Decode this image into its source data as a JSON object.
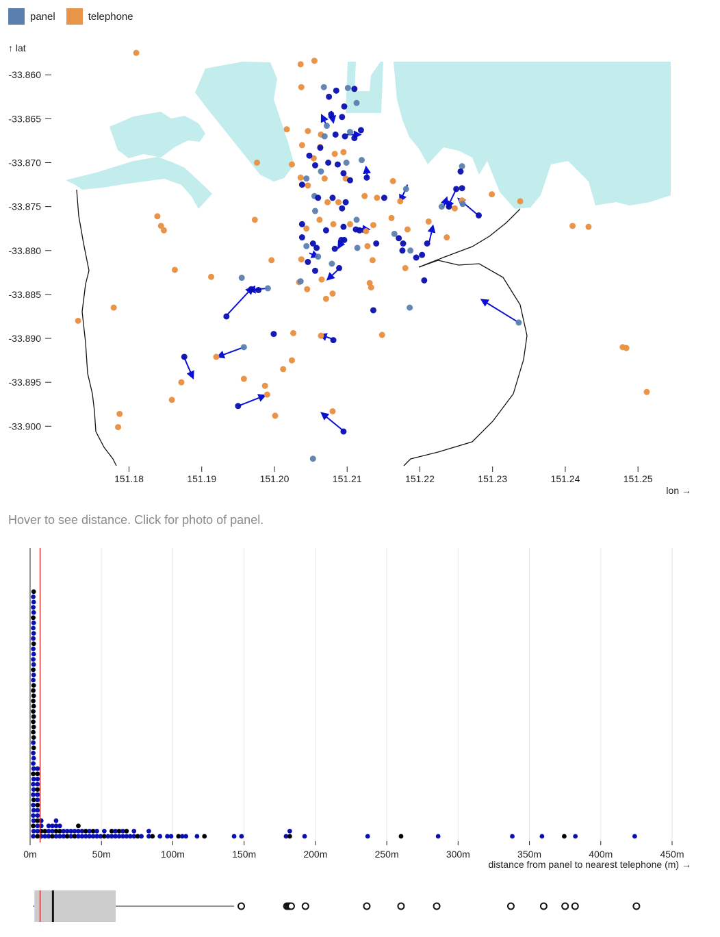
{
  "legend": {
    "items": [
      {
        "label": "panel",
        "color": "#5b7fae"
      },
      {
        "label": "telephone",
        "color": "#e8954a"
      }
    ]
  },
  "hint": "Hover to see distance. Click for photo of panel.",
  "colors": {
    "water": "#c3eced",
    "panel": "#5b7fae",
    "telephone": "#e8954a",
    "arrow": "#0b10d6",
    "dot_blue": "#0a0fb0",
    "dot_black": "#000000",
    "median": "#d0312d",
    "box_fill": "#cccccc",
    "grid": "#e6e6e6"
  },
  "chart_data": [
    {
      "type": "scatter",
      "id": "map",
      "xlabel": "lon →",
      "ylabel": "↑ lat",
      "xlim": [
        151.1728,
        151.2545
      ],
      "ylim": [
        -33.9045,
        -33.8585
      ],
      "xticks": [
        {
          "v": 151.18,
          "label": "151.18"
        },
        {
          "v": 151.19,
          "label": "151.19"
        },
        {
          "v": 151.2,
          "label": "151.20"
        },
        {
          "v": 151.21,
          "label": "151.21"
        },
        {
          "v": 151.22,
          "label": "151.22"
        },
        {
          "v": 151.23,
          "label": "151.23"
        },
        {
          "v": 151.24,
          "label": "151.24"
        },
        {
          "v": 151.25,
          "label": "151.25"
        }
      ],
      "yticks": [
        {
          "v": -33.86,
          "label": "-33.860"
        },
        {
          "v": -33.865,
          "label": "-33.865"
        },
        {
          "v": -33.87,
          "label": "-33.870"
        },
        {
          "v": -33.875,
          "label": "-33.875"
        },
        {
          "v": -33.88,
          "label": "-33.880"
        },
        {
          "v": -33.885,
          "label": "-33.885"
        },
        {
          "v": -33.89,
          "label": "-33.890"
        },
        {
          "v": -33.895,
          "label": "-33.895"
        },
        {
          "v": -33.9,
          "label": "-33.900"
        }
      ],
      "telephones": [
        [
          151.181,
          -33.8575
        ],
        [
          151.2036,
          -33.8588
        ],
        [
          151.2055,
          -33.8584
        ],
        [
          151.2037,
          -33.8614
        ],
        [
          151.2038,
          -33.868
        ],
        [
          151.2046,
          -33.8664
        ],
        [
          151.2064,
          -33.8668
        ],
        [
          151.2024,
          -33.8702
        ],
        [
          151.2036,
          -33.8717
        ],
        [
          151.2046,
          -33.8726
        ],
        [
          151.2083,
          -33.869
        ],
        [
          151.2095,
          -33.8688
        ],
        [
          151.2073,
          -33.8745
        ],
        [
          151.2088,
          -33.8745
        ],
        [
          151.2062,
          -33.8765
        ],
        [
          151.2044,
          -33.8775
        ],
        [
          151.2081,
          -33.877
        ],
        [
          151.2037,
          -33.881
        ],
        [
          151.2034,
          -33.8836
        ],
        [
          151.2045,
          -33.8844
        ],
        [
          151.2065,
          -33.8833
        ],
        [
          151.2071,
          -33.8855
        ],
        [
          151.208,
          -33.8849
        ],
        [
          151.1976,
          -33.87
        ],
        [
          151.1973,
          -33.8765
        ],
        [
          151.1996,
          -33.8811
        ],
        [
          151.2163,
          -33.8721
        ],
        [
          151.2173,
          -33.8744
        ],
        [
          151.2141,
          -33.874
        ],
        [
          151.2161,
          -33.8763
        ],
        [
          151.2126,
          -33.8778
        ],
        [
          151.2136,
          -33.8771
        ],
        [
          151.2183,
          -33.8776
        ],
        [
          151.2128,
          -33.8795
        ],
        [
          151.218,
          -33.882
        ],
        [
          151.2131,
          -33.8837
        ],
        [
          151.2133,
          -33.8842
        ],
        [
          151.2237,
          -33.8785
        ],
        [
          151.2248,
          -33.8752
        ],
        [
          151.2258,
          -33.8743
        ],
        [
          151.2299,
          -33.8736
        ],
        [
          151.2338,
          -33.8744
        ],
        [
          151.2212,
          -33.8767
        ],
        [
          151.241,
          -33.8772
        ],
        [
          151.2432,
          -33.8773
        ],
        [
          151.1839,
          -33.8761
        ],
        [
          151.1844,
          -33.8772
        ],
        [
          151.1848,
          -33.8777
        ],
        [
          151.1863,
          -33.8822
        ],
        [
          151.1913,
          -33.883
        ],
        [
          151.1779,
          -33.8865
        ],
        [
          151.173,
          -33.888
        ],
        [
          151.2026,
          -33.8894
        ],
        [
          151.2064,
          -33.8897
        ],
        [
          151.2148,
          -33.8896
        ],
        [
          151.2024,
          -33.8925
        ],
        [
          151.2012,
          -33.8935
        ],
        [
          151.1987,
          -33.8954
        ],
        [
          151.199,
          -33.8964
        ],
        [
          151.2001,
          -33.8988
        ],
        [
          151.208,
          -33.8983
        ],
        [
          151.1958,
          -33.8946
        ],
        [
          151.1872,
          -33.895
        ],
        [
          151.1859,
          -33.897
        ],
        [
          151.1787,
          -33.8986
        ],
        [
          151.1785,
          -33.9001
        ],
        [
          151.192,
          -33.8921
        ],
        [
          151.2479,
          -33.891
        ],
        [
          151.2484,
          -33.8911
        ],
        [
          151.2512,
          -33.8961
        ],
        [
          151.2135,
          -33.8811
        ],
        [
          151.2104,
          -33.877
        ],
        [
          151.2124,
          -33.8738
        ],
        [
          151.2098,
          -33.8718
        ],
        [
          151.2069,
          -33.8718
        ],
        [
          151.2054,
          -33.8695
        ],
        [
          151.2063,
          -33.8682
        ],
        [
          151.2017,
          -33.8662
        ]
      ],
      "panels": [
        [
          151.2068,
          -33.8614
        ],
        [
          151.2075,
          -33.8625
        ],
        [
          151.2085,
          -33.8618
        ],
        [
          151.2101,
          -33.8615
        ],
        [
          151.211,
          -33.8616
        ],
        [
          151.2096,
          -33.8636
        ],
        [
          151.2113,
          -33.8632
        ],
        [
          151.2078,
          -33.8645
        ],
        [
          151.2093,
          -33.8648
        ],
        [
          151.2072,
          -33.8658
        ],
        [
          151.2084,
          -33.8668
        ],
        [
          151.2097,
          -33.867
        ],
        [
          151.2104,
          -33.8665
        ],
        [
          151.211,
          -33.8672
        ],
        [
          151.2119,
          -33.8663
        ],
        [
          151.2069,
          -33.867
        ],
        [
          151.2048,
          -33.8692
        ],
        [
          151.2056,
          -33.8703
        ],
        [
          151.2064,
          -33.871
        ],
        [
          151.2074,
          -33.87
        ],
        [
          151.2087,
          -33.8702
        ],
        [
          151.2099,
          -33.87
        ],
        [
          151.2095,
          -33.8712
        ],
        [
          151.2104,
          -33.872
        ],
        [
          151.212,
          -33.8697
        ],
        [
          151.2127,
          -33.8717
        ],
        [
          151.2038,
          -33.8725
        ],
        [
          151.2055,
          -33.8738
        ],
        [
          151.208,
          -33.874
        ],
        [
          151.2093,
          -33.8752
        ],
        [
          151.2056,
          -33.8755
        ],
        [
          151.2071,
          -33.8777
        ],
        [
          151.2095,
          -33.8773
        ],
        [
          151.2113,
          -33.8765
        ],
        [
          151.2038,
          -33.877
        ],
        [
          151.2038,
          -33.8785
        ],
        [
          151.2044,
          -33.8795
        ],
        [
          151.2053,
          -33.8792
        ],
        [
          151.2058,
          -33.8797
        ],
        [
          151.2036,
          -33.8835
        ],
        [
          151.2046,
          -33.8813
        ],
        [
          151.2056,
          -33.8823
        ],
        [
          151.206,
          -33.8807
        ],
        [
          151.2083,
          -33.8798
        ],
        [
          151.2096,
          -33.8788
        ],
        [
          151.2079,
          -33.8815
        ],
        [
          151.2089,
          -33.882
        ],
        [
          151.2151,
          -33.874
        ],
        [
          151.2165,
          -33.8781
        ],
        [
          151.2171,
          -33.8786
        ],
        [
          151.2177,
          -33.8792
        ],
        [
          151.2187,
          -33.88
        ],
        [
          151.2195,
          -33.8808
        ],
        [
          151.2176,
          -33.88
        ],
        [
          151.2181,
          -33.873
        ],
        [
          151.2112,
          -33.8776
        ],
        [
          151.214,
          -33.8792
        ],
        [
          151.2186,
          -33.8865
        ],
        [
          151.2136,
          -33.8868
        ],
        [
          151.2206,
          -33.8834
        ],
        [
          151.223,
          -33.875
        ],
        [
          151.225,
          -33.873
        ],
        [
          151.2258,
          -33.8729
        ],
        [
          151.2259,
          -33.8747
        ],
        [
          151.2281,
          -33.876
        ],
        [
          151.224,
          -33.875
        ],
        [
          151.2258,
          -33.8704
        ],
        [
          151.2256,
          -33.871
        ],
        [
          151.2092,
          -33.8788
        ],
        [
          151.2114,
          -33.8797
        ],
        [
          151.2117,
          -33.8777
        ],
        [
          151.2203,
          -33.8805
        ],
        [
          151.1955,
          -33.8831
        ],
        [
          151.1968,
          -33.8844
        ],
        [
          151.1978,
          -33.8845
        ],
        [
          151.1991,
          -33.8843
        ],
        [
          151.1999,
          -33.8895
        ],
        [
          151.195,
          -33.8977
        ],
        [
          151.2053,
          -33.9037
        ],
        [
          151.1876,
          -33.8921
        ],
        [
          151.1934,
          -33.8875
        ],
        [
          151.1958,
          -33.891
        ],
        [
          151.2081,
          -33.8902
        ],
        [
          151.2095,
          -33.9006
        ],
        [
          151.2336,
          -33.8882
        ],
        [
          151.221,
          -33.8792
        ],
        [
          151.2063,
          -33.8683
        ],
        [
          151.2044,
          -33.8718
        ],
        [
          151.2098,
          -33.8745
        ],
        [
          151.206,
          -33.874
        ]
      ],
      "arrows": [
        [
          151.1934,
          -33.8874,
          151.197,
          -33.8842
        ],
        [
          151.1875,
          -33.892,
          151.1888,
          -33.8945
        ],
        [
          151.1958,
          -33.891,
          151.1922,
          -33.8921
        ],
        [
          151.195,
          -33.8977,
          151.1987,
          -33.8965
        ],
        [
          151.2096,
          -33.9006,
          151.2065,
          -33.8985
        ],
        [
          151.2081,
          -33.8901,
          151.2063,
          -33.8896
        ],
        [
          151.2336,
          -33.8882,
          151.2285,
          -33.8856
        ],
        [
          151.2282,
          -33.8761,
          151.2253,
          -33.8741
        ],
        [
          151.225,
          -33.873,
          151.2238,
          -33.8751
        ],
        [
          151.2213,
          -33.879,
          151.2218,
          -33.8772
        ],
        [
          151.2232,
          -33.8752,
          151.2237,
          -33.874
        ],
        [
          151.2183,
          -33.8725,
          151.2173,
          -33.8744
        ],
        [
          151.2096,
          -33.8785,
          151.2088,
          -33.8797
        ],
        [
          151.209,
          -33.882,
          151.2073,
          -33.8833
        ],
        [
          151.2048,
          -33.8803,
          151.206,
          -33.8807
        ],
        [
          151.2115,
          -33.8775,
          151.213,
          -33.8776
        ],
        [
          151.21,
          -33.8668,
          151.2118,
          -33.8668
        ],
        [
          151.2072,
          -33.8658,
          151.2065,
          -33.8646
        ],
        [
          151.2078,
          -33.8641,
          151.2081,
          -33.8654
        ],
        [
          151.2128,
          -33.8717,
          151.2126,
          -33.8705
        ],
        [
          151.1991,
          -33.8843,
          151.1965,
          -33.8845
        ]
      ]
    },
    {
      "type": "scatter",
      "id": "dotplot",
      "xlabel": "distance from panel to nearest telephone (m) →",
      "xlim": [
        0,
        450
      ],
      "xticks": [
        {
          "v": 0,
          "label": "0m"
        },
        {
          "v": 50,
          "label": "50m"
        },
        {
          "v": 100,
          "label": "100m"
        },
        {
          "v": 150,
          "label": "150m"
        },
        {
          "v": 200,
          "label": "200m"
        },
        {
          "v": 250,
          "label": "250m"
        },
        {
          "v": 300,
          "label": "300m"
        },
        {
          "v": 350,
          "label": "350m"
        },
        {
          "v": 400,
          "label": "400m"
        },
        {
          "v": 450,
          "label": "450m"
        }
      ],
      "threshold": 7,
      "small_distances_count": 48,
      "distances": [
        8,
        8,
        9,
        9,
        10,
        11,
        12,
        13,
        14,
        15,
        15,
        16,
        17,
        17,
        18,
        19,
        20,
        21,
        22,
        23,
        24,
        26,
        27,
        28,
        29,
        30,
        31,
        33,
        34,
        35,
        36,
        37,
        38,
        40,
        41,
        42,
        43,
        44,
        46,
        48,
        50,
        51,
        53,
        55,
        56,
        57,
        59,
        60,
        62,
        63,
        64,
        65,
        67,
        68,
        70,
        72,
        74,
        76,
        79,
        82,
        84,
        87,
        90,
        95,
        100,
        103,
        106,
        110,
        116,
        122,
        143,
        148,
        180,
        182,
        183,
        193,
        236,
        260,
        285,
        337,
        360,
        375,
        382,
        425
      ]
    },
    {
      "type": "box",
      "id": "boxplot",
      "q1": 3,
      "median": 16,
      "q3": 60,
      "whisker_low": 2,
      "whisker_high": 143,
      "red_line": 7,
      "outliers": [
        148,
        180,
        181,
        182,
        183,
        193,
        236,
        260,
        285,
        337,
        360,
        375,
        382,
        425
      ]
    }
  ]
}
